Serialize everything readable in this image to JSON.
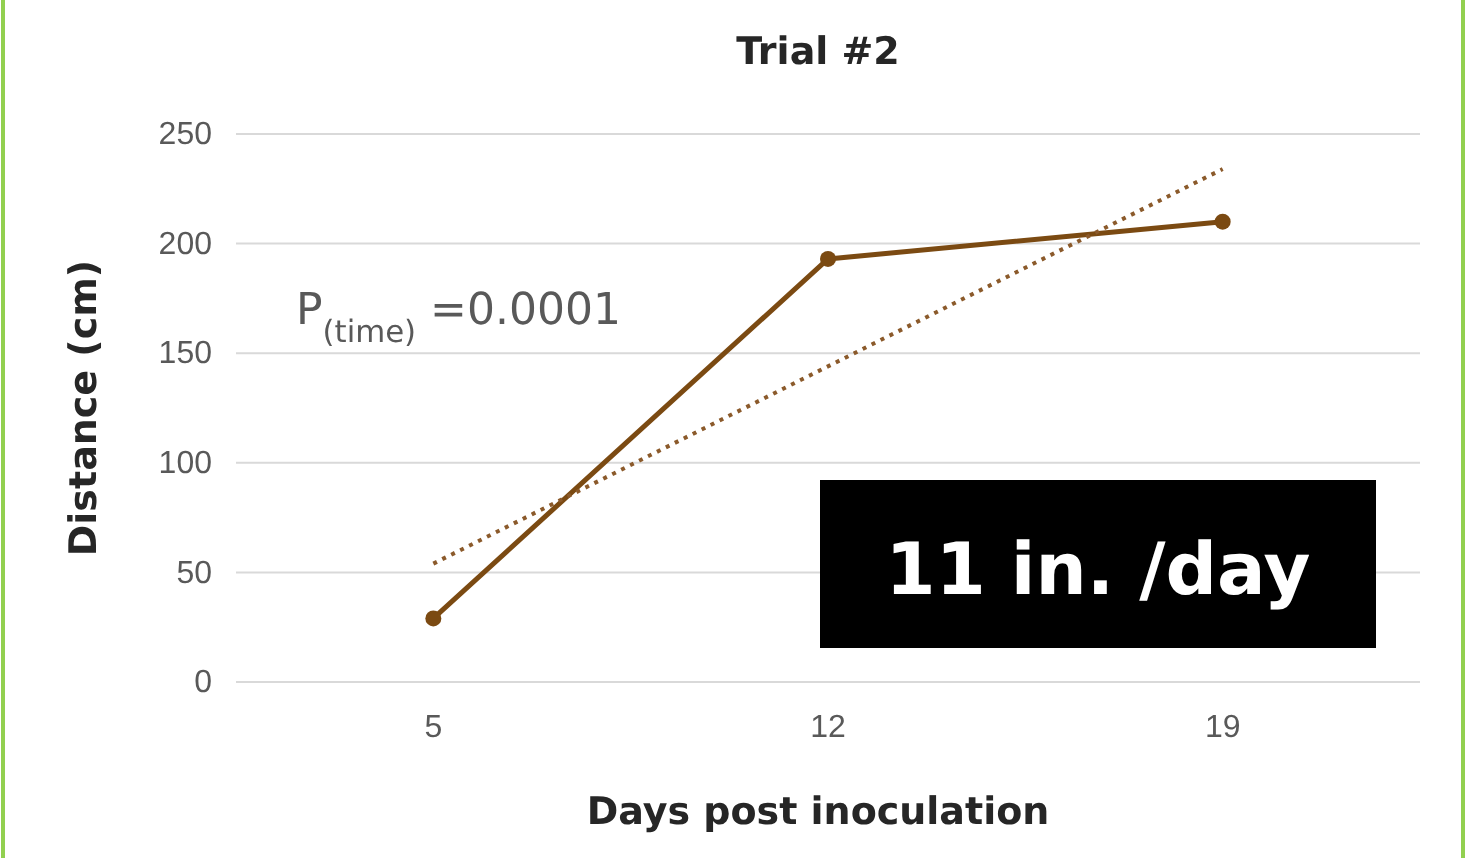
{
  "chart_data": {
    "type": "line",
    "title": "Trial #2",
    "xlabel": "Days post inoculation",
    "ylabel": "Distance (cm)",
    "categories": [
      "5",
      "12",
      "19"
    ],
    "series": [
      {
        "color": "#7b4a12",
        "values": [
          29,
          193,
          210
        ],
        "marker": "circle",
        "line_style": "solid"
      },
      {
        "type": "line",
        "x": [
          "5",
          "19"
        ],
        "color": "#8b5a2b",
        "values": [
          54,
          234
        ],
        "marker": "none",
        "line_style": "dotted"
      }
    ],
    "ylim": [
      0,
      250
    ],
    "yticks": [
      0,
      50,
      100,
      150,
      200,
      250
    ],
    "grid": "y",
    "annotations": [
      "P$_{(time)}$ =0.0001",
      "11 in. /day"
    ]
  }
}
